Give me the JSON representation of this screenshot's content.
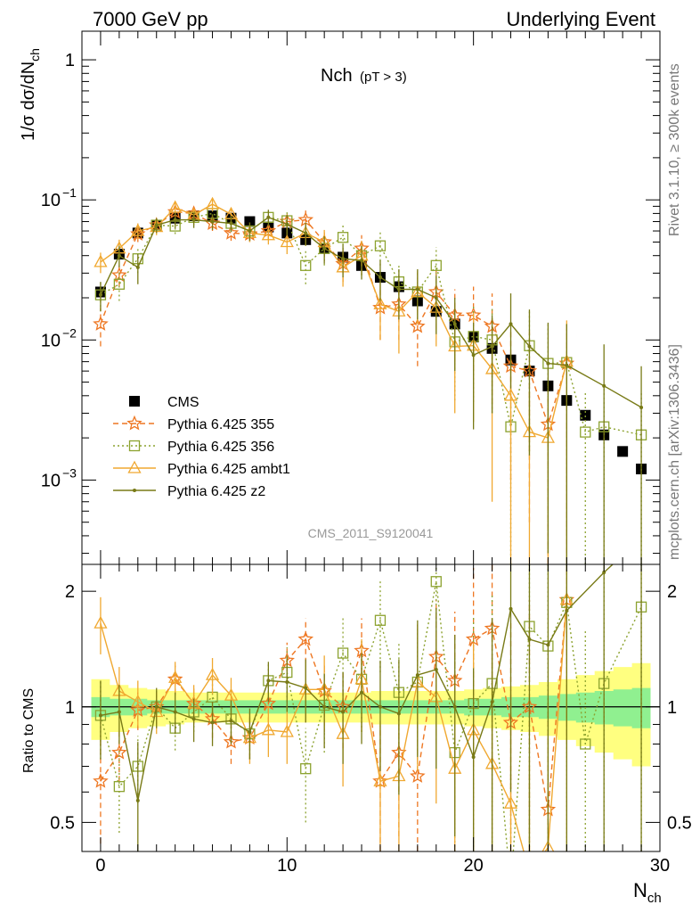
{
  "header": {
    "left": "7000 GeV pp",
    "right": "Underlying Event",
    "rivet": "Rivet 3.1.10, ≥ 300k events",
    "mcplots": "mcplots.cern.ch [arXiv:1306.3436]",
    "watermark": "CMS_2011_S9120041"
  },
  "chart_data": [
    {
      "type": "scatter",
      "title": "Nch",
      "title_sub": "(pT >  3)",
      "ylabel": "1/σ dσ/dN",
      "ylabel_sub": "ch",
      "ylog": true,
      "ylim": [
        0.00025,
        1.6
      ],
      "xlim": [
        -1,
        30
      ],
      "y_ticklabels": [
        {
          "value": 1,
          "label": "1"
        },
        {
          "value": 0.1,
          "label": "10",
          "exp": "−1"
        },
        {
          "value": 0.01,
          "label": "10",
          "exp": "−2"
        },
        {
          "value": 0.001,
          "label": "10",
          "exp": "−3"
        }
      ],
      "legend_position": "bottom-left",
      "series": [
        {
          "name": "CMS",
          "color": "#000000",
          "marker": "filled-square",
          "line": "none",
          "x": [
            0,
            1,
            2,
            3,
            4,
            5,
            6,
            7,
            8,
            9,
            10,
            11,
            12,
            13,
            14,
            15,
            16,
            17,
            18,
            19,
            20,
            21,
            22,
            23,
            24,
            25,
            26,
            27,
            28,
            29
          ],
          "y": [
            0.022,
            0.041,
            0.058,
            0.066,
            0.074,
            0.077,
            0.077,
            0.074,
            0.07,
            0.064,
            0.058,
            0.052,
            0.045,
            0.039,
            0.034,
            0.028,
            0.024,
            0.019,
            0.016,
            0.013,
            0.0105,
            0.0087,
            0.0072,
            0.006,
            0.0047,
            0.0037,
            0.0029,
            0.0021,
            0.0016,
            0.0012
          ]
        },
        {
          "name": "Pythia 6.425 355",
          "color": "#ee7722",
          "marker": "open-star",
          "line": "dashed",
          "x": [
            0,
            1,
            2,
            3,
            4,
            5,
            6,
            7,
            8,
            9,
            10,
            11,
            12,
            13,
            14,
            15,
            16,
            17,
            18,
            19,
            20,
            21,
            22,
            23,
            24,
            25
          ],
          "y": [
            0.013,
            0.029,
            0.057,
            0.066,
            0.082,
            0.08,
            0.068,
            0.058,
            0.057,
            0.06,
            0.07,
            0.072,
            0.05,
            0.035,
            0.045,
            0.017,
            0.018,
            0.0125,
            0.022,
            0.015,
            0.015,
            0.0125,
            0.0065,
            0.006,
            0.0025,
            0.0068
          ],
          "err": [
            0.004,
            0.005,
            0.007,
            0.007,
            0.008,
            0.008,
            0.008,
            0.007,
            0.007,
            0.008,
            0.01,
            0.012,
            0.01,
            0.009,
            0.011,
            0.007,
            0.008,
            0.006,
            0.01,
            0.008,
            0.009,
            0.009,
            0.0055,
            0.0055,
            0.0024,
            0.0065
          ]
        },
        {
          "name": "Pythia 6.425 356",
          "color": "#8ca22f",
          "marker": "open-square",
          "line": "dotted",
          "x": [
            0,
            1,
            2,
            3,
            4,
            5,
            6,
            7,
            8,
            9,
            10,
            11,
            12,
            13,
            14,
            15,
            16,
            17,
            18,
            19,
            20,
            21,
            22,
            23,
            24,
            25,
            26,
            27,
            29
          ],
          "y": [
            0.021,
            0.025,
            0.038,
            0.066,
            0.065,
            0.075,
            0.08,
            0.068,
            0.06,
            0.075,
            0.071,
            0.034,
            0.045,
            0.054,
            0.04,
            0.047,
            0.026,
            0.022,
            0.034,
            0.0097,
            0.0106,
            0.01,
            0.0024,
            0.0091,
            0.0068,
            0.0069,
            0.0022,
            0.0024,
            0.0021
          ],
          "err": [
            0.005,
            0.006,
            0.008,
            0.008,
            0.008,
            0.009,
            0.009,
            0.009,
            0.009,
            0.01,
            0.012,
            0.009,
            0.011,
            0.013,
            0.011,
            0.013,
            0.009,
            0.009,
            0.012,
            0.006,
            0.007,
            0.007,
            0.0023,
            0.0075,
            0.0065,
            0.0065,
            0.0021,
            0.0023,
            0.0021
          ]
        },
        {
          "name": "Pythia 6.425 ambt1",
          "color": "#f0a830",
          "marker": "open-triangle",
          "line": "solid",
          "x": [
            0,
            1,
            2,
            3,
            4,
            5,
            6,
            7,
            8,
            9,
            10,
            11,
            12,
            13,
            14,
            15,
            16,
            17,
            18,
            19,
            20,
            21,
            22,
            23,
            24,
            25
          ],
          "y": [
            0.036,
            0.045,
            0.06,
            0.064,
            0.088,
            0.078,
            0.093,
            0.079,
            0.058,
            0.056,
            0.05,
            0.058,
            0.05,
            0.033,
            0.04,
            0.018,
            0.016,
            0.022,
            0.017,
            0.009,
            0.0091,
            0.0062,
            0.004,
            0.0022,
            0.002,
            0.007
          ],
          "err": [
            0.006,
            0.007,
            0.008,
            0.008,
            0.009,
            0.009,
            0.01,
            0.009,
            0.008,
            0.008,
            0.009,
            0.011,
            0.011,
            0.009,
            0.011,
            0.008,
            0.008,
            0.009,
            0.008,
            0.006,
            0.0065,
            0.0055,
            0.0039,
            0.0021,
            0.0019,
            0.0068
          ]
        },
        {
          "name": "Pythia 6.425 z2",
          "color": "#787a16",
          "marker": "small-dot",
          "line": "solid",
          "x": [
            0,
            1,
            2,
            3,
            4,
            5,
            6,
            7,
            8,
            9,
            10,
            11,
            12,
            13,
            14,
            15,
            16,
            17,
            18,
            19,
            20,
            21,
            22,
            23,
            24,
            25,
            27,
            29
          ],
          "y": [
            0.021,
            0.04,
            0.033,
            0.066,
            0.072,
            0.072,
            0.07,
            0.068,
            0.06,
            0.075,
            0.067,
            0.058,
            0.045,
            0.038,
            0.037,
            0.028,
            0.023,
            0.023,
            0.02,
            0.013,
            0.0078,
            0.009,
            0.013,
            0.009,
            0.0068,
            0.0066,
            0.0047,
            0.0033
          ],
          "err": [
            0.005,
            0.007,
            0.008,
            0.008,
            0.009,
            0.009,
            0.009,
            0.009,
            0.009,
            0.01,
            0.011,
            0.011,
            0.01,
            0.01,
            0.01,
            0.009,
            0.009,
            0.009,
            0.009,
            0.007,
            0.0055,
            0.006,
            0.0085,
            0.0075,
            0.0065,
            0.0064,
            0.0046,
            0.0032
          ]
        }
      ]
    },
    {
      "type": "line",
      "ylabel": "Ratio to CMS",
      "xlabel": "N",
      "xlabel_sub": "ch",
      "xlim": [
        -1,
        30
      ],
      "ylim": [
        0.42,
        2.35
      ],
      "ylog": true,
      "y_ticks": [
        0.5,
        1,
        2
      ],
      "y_ticklabels": [
        "0.5",
        "1",
        "2"
      ],
      "x_ticks": [
        0,
        10,
        20,
        30
      ],
      "x_ticklabels": [
        "0",
        "10",
        "20",
        "30"
      ],
      "bands": {
        "x": [
          -0.5,
          0.5,
          1.5,
          2.5,
          3.5,
          4.5,
          5.5,
          6.5,
          7.5,
          8.5,
          9.5,
          10.5,
          11.5,
          12.5,
          13.5,
          14.5,
          15.5,
          16.5,
          17.5,
          18.5,
          19.5,
          20.5,
          21.5,
          22.5,
          23.5,
          24.5,
          25.5,
          26.5,
          27.5,
          28.5,
          29.5
        ],
        "green": [
          0.06,
          0.05,
          0.05,
          0.04,
          0.04,
          0.04,
          0.04,
          0.04,
          0.04,
          0.04,
          0.04,
          0.04,
          0.04,
          0.04,
          0.04,
          0.04,
          0.04,
          0.04,
          0.04,
          0.04,
          0.05,
          0.05,
          0.06,
          0.06,
          0.07,
          0.08,
          0.09,
          0.1,
          0.11,
          0.12
        ],
        "yellow": [
          0.18,
          0.14,
          0.12,
          0.11,
          0.1,
          0.09,
          0.09,
          0.09,
          0.09,
          0.09,
          0.09,
          0.09,
          0.09,
          0.09,
          0.09,
          0.1,
          0.1,
          0.1,
          0.1,
          0.1,
          0.11,
          0.12,
          0.13,
          0.14,
          0.16,
          0.18,
          0.21,
          0.24,
          0.27,
          0.3
        ]
      },
      "series": [
        {
          "name": "Pythia 6.425 355",
          "color": "#ee7722",
          "marker": "open-star",
          "line": "dashed",
          "x": [
            0,
            1,
            2,
            3,
            4,
            5,
            6,
            7,
            8,
            9,
            10,
            11,
            12,
            13,
            14,
            15,
            16,
            17,
            18,
            19,
            20,
            21,
            22,
            23,
            24,
            25
          ],
          "y": [
            0.64,
            0.76,
            0.98,
            1.0,
            1.18,
            1.02,
            0.93,
            0.81,
            0.83,
            1.02,
            1.32,
            1.5,
            1.1,
            1.0,
            1.4,
            0.64,
            0.76,
            0.66,
            1.35,
            1.17,
            1.5,
            1.6,
            0.91,
            1.0,
            0.54,
            1.9
          ],
          "err": [
            0.2,
            0.12,
            0.11,
            0.1,
            0.1,
            0.1,
            0.1,
            0.1,
            0.1,
            0.11,
            0.15,
            0.2,
            0.2,
            0.22,
            0.3,
            0.25,
            0.3,
            0.3,
            0.55,
            0.6,
            0.8,
            0.9,
            0.75,
            0.9,
            0.5,
            1.1
          ]
        },
        {
          "name": "Pythia 6.425 356",
          "color": "#8ca22f",
          "marker": "open-square",
          "line": "dotted",
          "x": [
            0,
            1,
            2,
            3,
            4,
            5,
            6,
            7,
            8,
            9,
            10,
            11,
            12,
            13,
            14,
            15,
            16,
            17,
            18,
            19,
            20,
            21,
            22,
            23,
            24,
            25,
            26,
            27,
            29
          ],
          "y": [
            0.95,
            0.62,
            0.7,
            1.0,
            0.88,
            0.97,
            1.06,
            0.93,
            0.85,
            1.17,
            1.23,
            0.69,
            1.01,
            1.38,
            1.18,
            1.68,
            1.09,
            1.16,
            2.12,
            0.76,
            1.02,
            1.15,
            0.34,
            1.62,
            1.44,
            1.87,
            0.8,
            1.15,
            1.82
          ],
          "err": [
            0.22,
            0.15,
            0.14,
            0.12,
            0.11,
            0.11,
            0.12,
            0.12,
            0.12,
            0.14,
            0.2,
            0.19,
            0.25,
            0.34,
            0.32,
            0.45,
            0.37,
            0.47,
            0.75,
            0.6,
            0.7,
            0.8,
            0.33,
            1.3,
            1.4,
            1.6,
            0.78,
            1.1,
            1.75
          ]
        },
        {
          "name": "Pythia 6.425 ambt1",
          "color": "#f0a830",
          "marker": "open-triangle",
          "line": "solid",
          "x": [
            0,
            1,
            2,
            3,
            4,
            5,
            6,
            7,
            8,
            9,
            10,
            11,
            12,
            13,
            14,
            15,
            16,
            17,
            18,
            19,
            20,
            21,
            22,
            23,
            24,
            25
          ],
          "y": [
            1.65,
            1.1,
            1.03,
            0.97,
            1.19,
            1.02,
            1.21,
            1.07,
            0.83,
            0.87,
            0.86,
            1.11,
            1.11,
            0.85,
            1.18,
            0.64,
            0.66,
            1.16,
            1.06,
            0.69,
            0.87,
            0.71,
            0.56,
            0.37,
            0.43,
            1.9
          ],
          "err": [
            0.28,
            0.17,
            0.14,
            0.12,
            0.12,
            0.12,
            0.13,
            0.12,
            0.12,
            0.13,
            0.15,
            0.2,
            0.25,
            0.23,
            0.32,
            0.28,
            0.33,
            0.48,
            0.5,
            0.46,
            0.6,
            0.63,
            0.55,
            0.35,
            0.41,
            1.8
          ]
        },
        {
          "name": "Pythia 6.425 z2",
          "color": "#787a16",
          "marker": "small-dot",
          "line": "solid",
          "x": [
            0,
            1,
            2,
            3,
            4,
            5,
            6,
            7,
            8,
            9,
            10,
            11,
            12,
            13,
            14,
            15,
            16,
            17,
            18,
            19,
            20,
            21,
            22,
            23,
            24,
            25,
            27,
            29
          ],
          "y": [
            0.95,
            0.97,
            0.57,
            1.0,
            0.97,
            0.93,
            0.91,
            0.92,
            0.86,
            1.17,
            1.16,
            1.12,
            1.0,
            0.97,
            1.09,
            1.0,
            0.96,
            1.21,
            1.25,
            1.0,
            0.74,
            1.03,
            1.8,
            1.5,
            1.45,
            1.78,
            2.24,
            2.75
          ],
          "err": [
            0.22,
            0.17,
            0.24,
            0.12,
            0.12,
            0.12,
            0.12,
            0.12,
            0.13,
            0.14,
            0.19,
            0.21,
            0.22,
            0.26,
            0.29,
            0.32,
            0.37,
            0.47,
            0.56,
            0.54,
            0.52,
            0.67,
            1.2,
            1.25,
            1.4,
            1.7,
            2.2,
            2.7
          ]
        }
      ]
    }
  ]
}
